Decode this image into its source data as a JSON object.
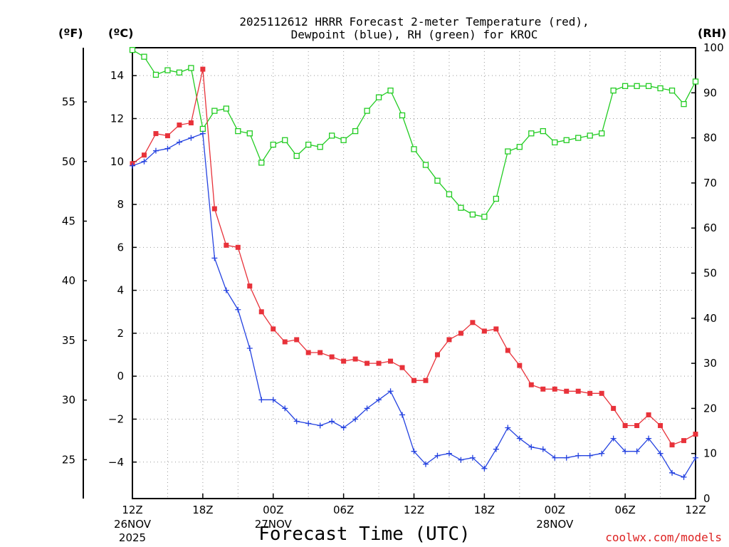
{
  "chart_data": {
    "type": "line",
    "title_line1": "2025112612 HRRR Forecast 2-meter Temperature (red),",
    "title_line2": "Dewpoint (blue), RH (green) for KROC",
    "xlabel": "Forecast Time (UTC)",
    "credit": "coolwx.com/models",
    "unit_f": "(ºF)",
    "unit_c": "(ºC)",
    "unit_rh": "(RH)",
    "x_range_hours": [
      0,
      48
    ],
    "x_ticks": [
      {
        "h": 0,
        "label": "12Z",
        "sub1": "26NOV",
        "sub2": "2025"
      },
      {
        "h": 6,
        "label": "18Z"
      },
      {
        "h": 12,
        "label": "00Z",
        "sub1": "27NOV"
      },
      {
        "h": 18,
        "label": "06Z"
      },
      {
        "h": 24,
        "label": "12Z"
      },
      {
        "h": 30,
        "label": "18Z"
      },
      {
        "h": 36,
        "label": "00Z",
        "sub1": "28NOV"
      },
      {
        "h": 42,
        "label": "06Z"
      },
      {
        "h": 48,
        "label": "12Z"
      }
    ],
    "c_axis": {
      "range": [
        -5.7,
        15.3
      ],
      "ticks": [
        -4,
        -2,
        0,
        2,
        4,
        6,
        8,
        10,
        12,
        14
      ],
      "labels": [
        "−4",
        "−2",
        "0",
        "2",
        "4",
        "6",
        "8",
        "10",
        "12",
        "14"
      ]
    },
    "f_axis": {
      "ticks": [
        25,
        30,
        35,
        40,
        45,
        50,
        55
      ],
      "labels": [
        "25",
        "30",
        "35",
        "40",
        "45",
        "50",
        "55"
      ]
    },
    "rh_axis": {
      "range": [
        0,
        100
      ],
      "ticks": [
        0,
        10,
        20,
        30,
        40,
        50,
        60,
        70,
        80,
        90,
        100
      ],
      "labels": [
        "0",
        "10",
        "20",
        "30",
        "40",
        "50",
        "60",
        "70",
        "80",
        "90",
        "100"
      ]
    },
    "series": [
      {
        "name": "Temperature",
        "axis": "c",
        "color": "#e8323a",
        "marker": "filled-square",
        "values": [
          9.9,
          10.3,
          11.3,
          11.2,
          11.7,
          11.8,
          14.3,
          7.8,
          6.1,
          6.0,
          4.2,
          3.0,
          2.2,
          1.6,
          1.7,
          1.1,
          1.1,
          0.9,
          0.7,
          0.8,
          0.6,
          0.6,
          0.7,
          0.4,
          -0.2,
          -0.2,
          1.0,
          1.7,
          2.0,
          2.5,
          2.1,
          2.2,
          1.2,
          0.5,
          -0.4,
          -0.6,
          -0.6,
          -0.7,
          -0.7,
          -0.8,
          -0.8,
          -1.5,
          -2.3,
          -2.3,
          -1.8,
          -2.3,
          -3.2,
          -3.0,
          -2.7
        ]
      },
      {
        "name": "Dewpoint",
        "axis": "c",
        "color": "#2442e0",
        "marker": "plus",
        "values": [
          9.8,
          10.0,
          10.5,
          10.6,
          10.9,
          11.1,
          11.3,
          5.5,
          4.0,
          3.1,
          1.3,
          -1.1,
          -1.1,
          -1.5,
          -2.1,
          -2.2,
          -2.3,
          -2.1,
          -2.4,
          -2.0,
          -1.5,
          -1.1,
          -0.7,
          -1.8,
          -3.5,
          -4.1,
          -3.7,
          -3.6,
          -3.9,
          -3.8,
          -4.3,
          -3.4,
          -2.4,
          -2.9,
          -3.3,
          -3.4,
          -3.8,
          -3.8,
          -3.7,
          -3.7,
          -3.6,
          -2.9,
          -3.5,
          -3.5,
          -2.9,
          -3.6,
          -4.5,
          -4.7,
          -3.8
        ]
      },
      {
        "name": "RH",
        "axis": "rh",
        "color": "#22cc22",
        "marker": "open-square",
        "values": [
          99.5,
          98,
          94,
          95,
          94.5,
          95.5,
          82,
          86,
          86.5,
          81.5,
          81,
          74.5,
          78.5,
          79.5,
          76,
          78.5,
          78,
          80.5,
          79.5,
          81.5,
          86,
          89,
          90.5,
          85,
          77.5,
          74,
          70.5,
          67.5,
          64.5,
          63,
          62.5,
          66.5,
          77,
          78,
          81,
          81.5,
          79,
          79.5,
          80,
          80.5,
          81,
          90.5,
          91.5,
          91.5,
          91.5,
          91,
          90.5,
          87.5,
          92.5
        ]
      }
    ]
  }
}
